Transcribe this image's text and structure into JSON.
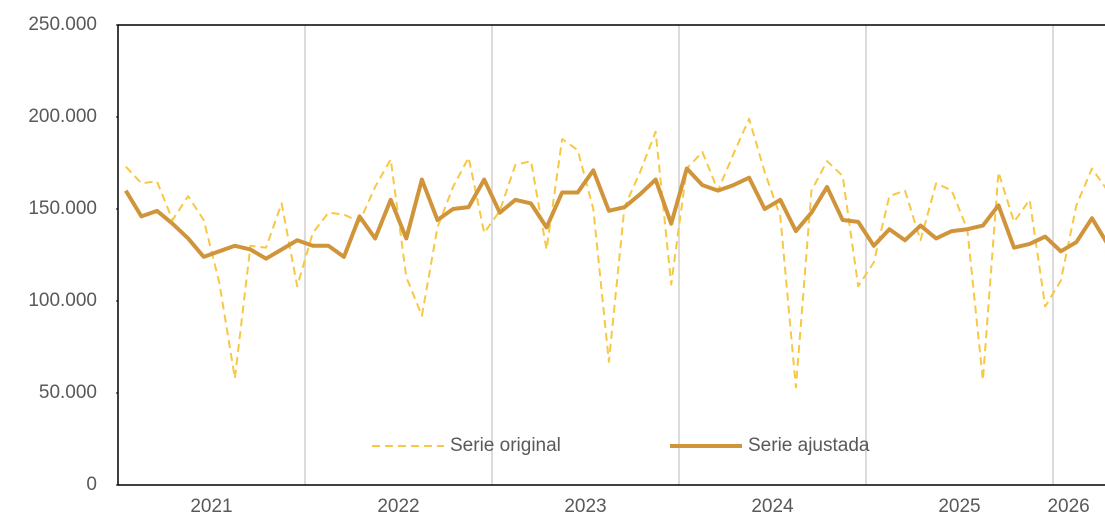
{
  "chart_data": {
    "type": "line",
    "categories": [
      null,
      null,
      null,
      null,
      null,
      null,
      "2021",
      null,
      null,
      null,
      null,
      null,
      null,
      null,
      null,
      null,
      null,
      null,
      "2022",
      null,
      null,
      null,
      null,
      null,
      null,
      null,
      null,
      null,
      null,
      null,
      "2023",
      null,
      null,
      null,
      null,
      null,
      null,
      null,
      null,
      null,
      null,
      null,
      "2024",
      null,
      null,
      null,
      null,
      null,
      null,
      null,
      null,
      null,
      null,
      null,
      "2025",
      null,
      null,
      null,
      null,
      null,
      null,
      "2026",
      null,
      null
    ],
    "series": [
      {
        "name": "Serie original",
        "color": "#f7c843",
        "dashed": true,
        "values": [
          173000,
          164000,
          165000,
          144000,
          157000,
          144000,
          110000,
          58000,
          130000,
          129000,
          153000,
          108000,
          137000,
          148000,
          147000,
          143000,
          162000,
          177000,
          113000,
          92000,
          140000,
          162000,
          178000,
          137000,
          149000,
          174000,
          176000,
          128000,
          188000,
          182000,
          150000,
          67000,
          151000,
          170000,
          192000,
          109000,
          172000,
          181000,
          160000,
          180000,
          199000,
          170000,
          146000,
          53000,
          160000,
          176000,
          168000,
          108000,
          121000,
          157000,
          160000,
          133000,
          164000,
          160000,
          139000,
          57000,
          170000,
          143000,
          155000,
          97000,
          111000,
          152000,
          172000,
          160000
        ]
      },
      {
        "name": "Serie ajustada",
        "color": "#d0943a",
        "dashed": false,
        "values": [
          160000,
          146000,
          149000,
          142000,
          134000,
          124000,
          127000,
          130000,
          128000,
          123000,
          128000,
          133000,
          130000,
          130000,
          124000,
          146000,
          134000,
          155000,
          134000,
          166000,
          144000,
          150000,
          151000,
          166000,
          148000,
          155000,
          153000,
          140000,
          159000,
          159000,
          171000,
          149000,
          151000,
          158000,
          166000,
          142000,
          172000,
          163000,
          160000,
          163000,
          167000,
          150000,
          155000,
          138000,
          148000,
          162000,
          144000,
          143000,
          130000,
          139000,
          133000,
          141000,
          134000,
          138000,
          139000,
          141000,
          152000,
          129000,
          131000,
          135000,
          127000,
          132000,
          145000,
          131000
        ]
      }
    ],
    "ylim": [
      0,
      250000
    ],
    "yticks": [
      0,
      {
        "value": 50000,
        "label": "50.000"
      },
      {
        "value": 100000,
        "label": "100.000"
      },
      {
        "value": 150000,
        "label": "150.000"
      },
      {
        "value": 200000,
        "label": "200.000"
      },
      {
        "value": 250000,
        "label": "250.000"
      }
    ],
    "legend": "bottom"
  }
}
